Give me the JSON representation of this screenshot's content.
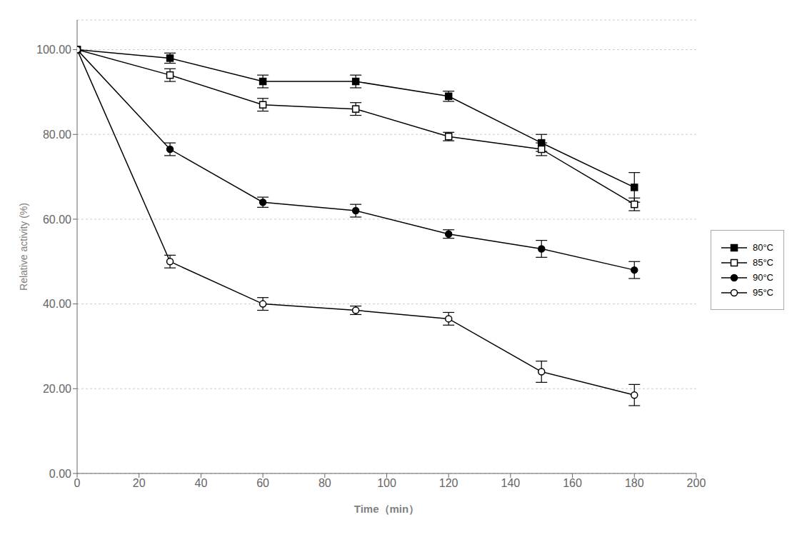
{
  "chart_data": {
    "type": "line",
    "xlabel": "Time（min）",
    "ylabel": "Relative activity (%)",
    "xlim": [
      0,
      200
    ],
    "ylim": [
      0,
      107
    ],
    "xticks": [
      0,
      20,
      40,
      60,
      80,
      100,
      120,
      140,
      160,
      180,
      200
    ],
    "yticks": [
      {
        "value": 0,
        "label": "0.00"
      },
      {
        "value": 20,
        "label": "20.00"
      },
      {
        "value": 40,
        "label": "40.00"
      },
      {
        "value": 60,
        "label": "60.00"
      },
      {
        "value": 80,
        "label": "80.00"
      },
      {
        "value": 100,
        "label": "100.00"
      }
    ],
    "grid": "y",
    "legend": "right",
    "series": [
      {
        "name": "80°C",
        "color": "#000000",
        "marker": "square",
        "x": [
          0,
          30,
          60,
          90,
          120,
          150,
          180
        ],
        "values": [
          100,
          98.0,
          92.5,
          92.5,
          89.0,
          78.0,
          67.5
        ],
        "errors": [
          0,
          1.2,
          1.5,
          1.5,
          1.2,
          2.0,
          3.5
        ]
      },
      {
        "name": "85°C",
        "color": "#000000",
        "marker": "square-open",
        "x": [
          0,
          30,
          60,
          90,
          120,
          150,
          180
        ],
        "values": [
          100,
          94.0,
          87.0,
          86.0,
          79.5,
          76.5,
          63.5
        ],
        "errors": [
          0,
          1.5,
          1.5,
          1.5,
          1.0,
          1.5,
          1.5
        ]
      },
      {
        "name": "90°C",
        "color": "#000000",
        "marker": "circle",
        "x": [
          0,
          30,
          60,
          90,
          120,
          150,
          180
        ],
        "values": [
          100,
          76.5,
          64.0,
          62.0,
          56.5,
          53.0,
          48.0
        ],
        "errors": [
          0,
          1.5,
          1.2,
          1.5,
          1.0,
          2.0,
          2.0
        ]
      },
      {
        "name": "95°C",
        "color": "#000000",
        "marker": "circle-open",
        "x": [
          0,
          30,
          60,
          90,
          120,
          150,
          180
        ],
        "values": [
          100,
          50.0,
          40.0,
          38.5,
          36.5,
          24.0,
          18.5
        ],
        "errors": [
          0,
          1.5,
          1.5,
          1.0,
          1.5,
          2.5,
          2.5
        ]
      }
    ]
  }
}
